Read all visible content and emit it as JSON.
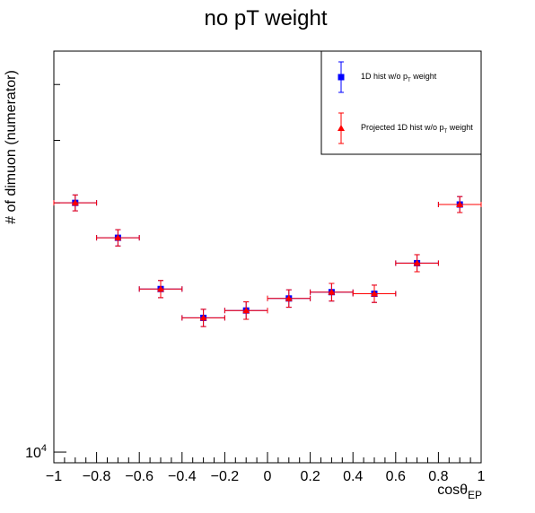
{
  "chart_data": {
    "type": "scatter",
    "title": "no pT weight",
    "xlabel": "cosθ",
    "xlabel_sub": "EP",
    "ylabel": "# of dimuon (numerator)",
    "xlim": [
      -1,
      1
    ],
    "ylim_log": [
      9800,
      21300
    ],
    "y_scale": "log",
    "x_ticks": [
      -1,
      -0.8,
      -0.6,
      -0.4,
      -0.2,
      0,
      0.2,
      0.4,
      0.6,
      0.8,
      1
    ],
    "x_tick_labels": [
      "−1",
      "−0.8",
      "−0.6",
      "−0.4",
      "−0.2",
      "0",
      "0.2",
      "0.4",
      "0.6",
      "0.8",
      "1"
    ],
    "y_label_tick": {
      "base": "10",
      "exp": "4",
      "value": 10000
    },
    "y_minor_ticks": [
      20000,
      18000,
      16000
    ],
    "x": [
      -0.9,
      -0.7,
      -0.5,
      -0.3,
      -0.1,
      0.1,
      0.3,
      0.5,
      0.7,
      0.9
    ],
    "x_err": 0.1,
    "legend_position": "top-right",
    "series": [
      {
        "name": "1D hist w/o p",
        "name_sub": "T",
        "name_suffix": " weight",
        "marker": "square",
        "color": "#0000ff",
        "values": [
          16000,
          14980,
          13600,
          12880,
          13060,
          13360,
          13520,
          13480,
          14280,
          15950
        ],
        "errors": [
          240,
          230,
          220,
          210,
          215,
          220,
          225,
          220,
          230,
          240
        ]
      },
      {
        "name": "Projected 1D hist w/o p",
        "name_sub": "T",
        "name_suffix": " weight",
        "marker": "triangle",
        "color": "#ff0000",
        "values": [
          16000,
          14980,
          13600,
          12880,
          13060,
          13360,
          13520,
          13480,
          14280,
          15950
        ],
        "errors": [
          240,
          230,
          220,
          210,
          215,
          220,
          225,
          220,
          230,
          240
        ]
      }
    ]
  }
}
